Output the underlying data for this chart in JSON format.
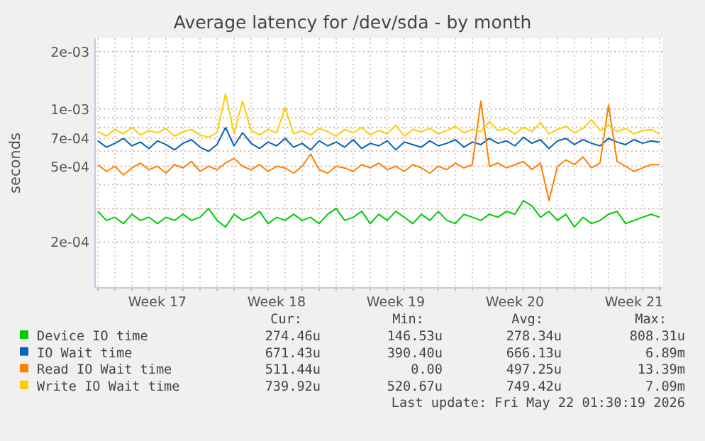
{
  "chart_data": {
    "type": "line",
    "title": "Average latency for /dev/sda - by month",
    "ylabel": "seconds",
    "log": "y",
    "grid": true,
    "legend": "bottom",
    "marker": "none",
    "line_style": "solid",
    "xlim": [
      "2026-04-19T20:00",
      "2026-05-23T04:00"
    ],
    "xticks": [
      {
        "value": "2026-04-20",
        "label": null
      },
      {
        "value": "2026-04-21",
        "label": null
      },
      {
        "value": "2026-04-22",
        "label": null
      },
      {
        "value": "2026-04-23",
        "label": null
      },
      {
        "value": "2026-04-24",
        "label": null
      },
      {
        "value": "2026-04-25",
        "label": null
      },
      {
        "value": "2026-04-26",
        "label": null
      },
      {
        "value": "2026-04-27",
        "label": null
      },
      {
        "value": "2026-04-28",
        "label": null
      },
      {
        "value": "2026-04-29",
        "label": null
      },
      {
        "value": "2026-04-30",
        "label": null
      },
      {
        "value": "2026-05-01",
        "label": null
      },
      {
        "value": "2026-05-02",
        "label": null
      },
      {
        "value": "2026-05-03",
        "label": null
      },
      {
        "value": "2026-05-04",
        "label": null
      },
      {
        "value": "2026-05-05",
        "label": null
      },
      {
        "value": "2026-05-06",
        "label": null
      },
      {
        "value": "2026-05-07",
        "label": null
      },
      {
        "value": "2026-05-08",
        "label": null
      },
      {
        "value": "2026-05-09",
        "label": null
      },
      {
        "value": "2026-05-10",
        "label": null
      },
      {
        "value": "2026-05-11",
        "label": null
      },
      {
        "value": "2026-05-12",
        "label": null
      },
      {
        "value": "2026-05-13",
        "label": null
      },
      {
        "value": "2026-05-14",
        "label": null
      },
      {
        "value": "2026-05-15",
        "label": null
      },
      {
        "value": "2026-05-16",
        "label": null
      },
      {
        "value": "2026-05-17",
        "label": null
      },
      {
        "value": "2026-05-18",
        "label": null
      },
      {
        "value": "2026-05-19",
        "label": null
      },
      {
        "value": "2026-05-20",
        "label": null
      },
      {
        "value": "2026-05-21",
        "label": null
      },
      {
        "value": "2026-05-22",
        "label": null
      },
      {
        "value": "2026-05-23",
        "label": null
      },
      {
        "value": "2026-04-23T12:00",
        "label": "Week 17"
      },
      {
        "value": "2026-04-30T12:00",
        "label": "Week 18"
      },
      {
        "value": "2026-05-07T12:00",
        "label": "Week 19"
      },
      {
        "value": "2026-05-14T12:00",
        "label": "Week 20"
      },
      {
        "value": "2026-05-21T12:00",
        "label": "Week 21"
      }
    ],
    "ylim": [
      0.000115,
      0.00235
    ],
    "yticks": [
      {
        "value": 0.0002,
        "label": "2e-04"
      },
      {
        "value": 0.0003,
        "label": null
      },
      {
        "value": 0.0004,
        "label": null
      },
      {
        "value": 0.0005,
        "label": "5e-04"
      },
      {
        "value": 0.0006,
        "label": null
      },
      {
        "value": 0.0007,
        "label": "7e-04"
      },
      {
        "value": 0.0008,
        "label": null
      },
      {
        "value": 0.0009,
        "label": null
      },
      {
        "value": 0.001,
        "label": "1e-03"
      },
      {
        "value": 0.002,
        "label": "2e-03"
      }
    ],
    "x": [
      "2026-04-20T00:00",
      "2026-04-20T12:00",
      "2026-04-21T00:00",
      "2026-04-21T12:00",
      "2026-04-22T00:00",
      "2026-04-22T12:00",
      "2026-04-23T00:00",
      "2026-04-23T12:00",
      "2026-04-24T00:00",
      "2026-04-24T12:00",
      "2026-04-25T00:00",
      "2026-04-25T12:00",
      "2026-04-26T00:00",
      "2026-04-26T12:00",
      "2026-04-27T00:00",
      "2026-04-27T12:00",
      "2026-04-28T00:00",
      "2026-04-28T12:00",
      "2026-04-29T00:00",
      "2026-04-29T12:00",
      "2026-04-30T00:00",
      "2026-04-30T12:00",
      "2026-05-01T00:00",
      "2026-05-01T12:00",
      "2026-05-02T00:00",
      "2026-05-02T12:00",
      "2026-05-03T00:00",
      "2026-05-03T12:00",
      "2026-05-04T00:00",
      "2026-05-04T12:00",
      "2026-05-05T00:00",
      "2026-05-05T12:00",
      "2026-05-06T00:00",
      "2026-05-06T12:00",
      "2026-05-07T00:00",
      "2026-05-07T12:00",
      "2026-05-08T00:00",
      "2026-05-08T12:00",
      "2026-05-09T00:00",
      "2026-05-09T12:00",
      "2026-05-10T00:00",
      "2026-05-10T12:00",
      "2026-05-11T00:00",
      "2026-05-11T12:00",
      "2026-05-12T00:00",
      "2026-05-12T12:00",
      "2026-05-13T00:00",
      "2026-05-13T12:00",
      "2026-05-14T00:00",
      "2026-05-14T12:00",
      "2026-05-15T00:00",
      "2026-05-15T12:00",
      "2026-05-16T00:00",
      "2026-05-16T12:00",
      "2026-05-17T00:00",
      "2026-05-17T12:00",
      "2026-05-18T00:00",
      "2026-05-18T12:00",
      "2026-05-19T00:00",
      "2026-05-19T12:00",
      "2026-05-20T00:00",
      "2026-05-20T12:00",
      "2026-05-21T00:00",
      "2026-05-21T12:00",
      "2026-05-22T00:00",
      "2026-05-22T12:00",
      "2026-05-23T00:00"
    ],
    "series": [
      {
        "name": "Device IO time",
        "color": "#00cc00",
        "values": [
          0.00029,
          0.00026,
          0.00027,
          0.00025,
          0.00028,
          0.00026,
          0.00027,
          0.00025,
          0.00027,
          0.00026,
          0.00028,
          0.00026,
          0.00027,
          0.0003,
          0.00026,
          0.00024,
          0.00028,
          0.00026,
          0.00027,
          0.00029,
          0.00025,
          0.00027,
          0.00026,
          0.00028,
          0.00026,
          0.00027,
          0.00025,
          0.00028,
          0.0003,
          0.00026,
          0.00027,
          0.00029,
          0.00025,
          0.00028,
          0.00026,
          0.00029,
          0.00027,
          0.00025,
          0.00028,
          0.00026,
          0.00029,
          0.00026,
          0.00025,
          0.00028,
          0.00027,
          0.00026,
          0.00028,
          0.00027,
          0.00029,
          0.00028,
          0.00033,
          0.00031,
          0.00027,
          0.00029,
          0.00026,
          0.00028,
          0.00024,
          0.00027,
          0.00025,
          0.00026,
          0.00028,
          0.00029,
          0.00025,
          0.00026,
          0.00027,
          0.00028,
          0.00027
        ]
      },
      {
        "name": "IO Wait time",
        "color": "#0066b3",
        "values": [
          0.00068,
          0.00063,
          0.00066,
          0.0007,
          0.00064,
          0.00067,
          0.00062,
          0.00068,
          0.00065,
          0.00061,
          0.00066,
          0.00069,
          0.00063,
          0.0006,
          0.00065,
          0.0008,
          0.00064,
          0.00075,
          0.00066,
          0.00062,
          0.00067,
          0.00064,
          0.0007,
          0.00063,
          0.00066,
          0.00061,
          0.00068,
          0.00064,
          0.00067,
          0.00063,
          0.00069,
          0.00062,
          0.00066,
          0.00064,
          0.00068,
          0.00061,
          0.00067,
          0.00065,
          0.00063,
          0.00068,
          0.00064,
          0.00066,
          0.00069,
          0.00063,
          0.00067,
          0.00065,
          0.0007,
          0.00066,
          0.00068,
          0.00064,
          0.00071,
          0.00066,
          0.00069,
          0.00062,
          0.00068,
          0.0007,
          0.00065,
          0.00069,
          0.00066,
          0.00064,
          0.0007,
          0.00067,
          0.00065,
          0.00069,
          0.00066,
          0.00068,
          0.00067
        ]
      },
      {
        "name": "Read IO Wait time",
        "color": "#ff8000",
        "values": [
          0.00051,
          0.00047,
          0.0005,
          0.00045,
          0.00049,
          0.00052,
          0.00048,
          0.0005,
          0.00046,
          0.00051,
          0.00049,
          0.00053,
          0.00047,
          0.0005,
          0.00048,
          0.00052,
          0.00055,
          0.0005,
          0.00048,
          0.00051,
          0.00047,
          0.0005,
          0.00049,
          0.00046,
          0.0005,
          0.00058,
          0.00048,
          0.00046,
          0.0005,
          0.00049,
          0.00047,
          0.00051,
          0.00049,
          0.00052,
          0.00048,
          0.0005,
          0.00047,
          0.00051,
          0.00049,
          0.00046,
          0.0005,
          0.00048,
          0.00052,
          0.00049,
          0.00051,
          0.0011,
          0.0005,
          0.00052,
          0.00049,
          0.00051,
          0.00053,
          0.00048,
          0.00052,
          0.00033,
          0.0005,
          0.00054,
          0.00051,
          0.00056,
          0.00049,
          0.00052,
          0.00105,
          0.00053,
          0.0005,
          0.00047,
          0.00049,
          0.00051,
          0.00051
        ]
      },
      {
        "name": "Write IO Wait time",
        "color": "#ffcc00",
        "values": [
          0.00076,
          0.00072,
          0.00078,
          0.00074,
          0.0008,
          0.00073,
          0.00077,
          0.00075,
          0.00079,
          0.00072,
          0.00076,
          0.00078,
          0.00073,
          0.00071,
          0.00075,
          0.0012,
          0.00074,
          0.0011,
          0.00077,
          0.00073,
          0.00078,
          0.00075,
          0.00102,
          0.00074,
          0.00077,
          0.00073,
          0.00079,
          0.00076,
          0.00072,
          0.00078,
          0.00075,
          0.0008,
          0.00073,
          0.00077,
          0.00074,
          0.00082,
          0.00072,
          0.00078,
          0.00076,
          0.00079,
          0.00074,
          0.00077,
          0.00081,
          0.00075,
          0.00078,
          0.00076,
          0.00086,
          0.00077,
          0.00079,
          0.00074,
          0.0008,
          0.00076,
          0.00085,
          0.00074,
          0.00078,
          0.00081,
          0.00075,
          0.00079,
          0.00088,
          0.00077,
          0.00082,
          0.00076,
          0.00079,
          0.00074,
          0.00077,
          0.00078,
          0.00074
        ]
      }
    ],
    "annotations": [
      "Cur:",
      "Min:",
      "Avg:",
      "Max:",
      "274.46u",
      "146.53u",
      "278.34u",
      "808.31u",
      "671.43u",
      "390.40u",
      "666.13u",
      "6.89m",
      "511.44u",
      "0.00",
      "497.25u",
      "13.39m",
      "739.92u",
      "520.67u",
      "749.42u",
      "7.09m",
      "Last update: Fri May 22 01:30:19 2026"
    ]
  }
}
